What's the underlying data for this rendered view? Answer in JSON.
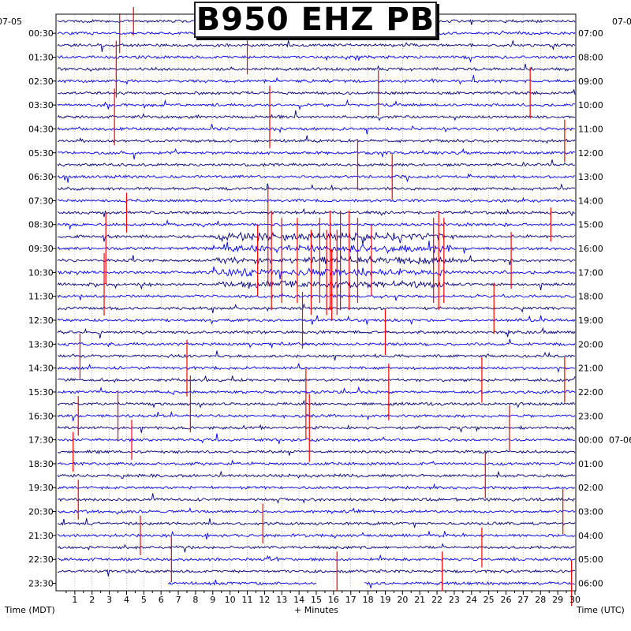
{
  "title": "B950 EHZ PB",
  "left_date": "07-05",
  "right_date": "07-06",
  "left_axis_label": "Time (MDT)",
  "right_axis_label": "Time (UTC)",
  "x_axis_label": "+ Minutes",
  "colors": {
    "trace_dark": "#000080",
    "trace_blue": "#0000ff",
    "event_red": "#ff0000",
    "grid": "#808080",
    "background": "#ffffff"
  },
  "chart_data": {
    "type": "helicorder",
    "title": "B950 EHZ PB",
    "xlabel": "+ Minutes",
    "xlim": [
      0,
      30
    ],
    "x_ticks": [
      1,
      2,
      3,
      4,
      5,
      6,
      7,
      8,
      9,
      10,
      11,
      12,
      13,
      14,
      15,
      16,
      17,
      18,
      19,
      20,
      21,
      22,
      23,
      24,
      25,
      26,
      27,
      28,
      29,
      30
    ],
    "rows_per_half_hour": 1,
    "left_time_labels": [
      "00:30",
      "01:30",
      "02:30",
      "03:30",
      "04:30",
      "05:30",
      "06:30",
      "07:30",
      "08:30",
      "09:30",
      "10:30",
      "11:30",
      "12:30",
      "13:30",
      "14:30",
      "15:30",
      "16:30",
      "17:30",
      "18:30",
      "19:30",
      "20:30",
      "21:30",
      "22:30",
      "23:30"
    ],
    "right_time_labels": [
      "07:00",
      "08:00",
      "09:00",
      "10:00",
      "11:00",
      "12:00",
      "13:00",
      "14:00",
      "15:00",
      "16:00",
      "17:00",
      "18:00",
      "19:00",
      "20:00",
      "21:00",
      "22:00",
      "23:00",
      "00:00",
      "01:00",
      "02:00",
      "03:00",
      "04:00",
      "05:00",
      "06:00"
    ],
    "right_date_marker": {
      "label": "07-06",
      "at": "00:00"
    },
    "row_count": 48,
    "trace_colors_cycle": [
      "#000080",
      "#0000ff"
    ],
    "events": [
      {
        "row": 0,
        "minute": 4.4,
        "amp": 1.0
      },
      {
        "row": 1,
        "minute": 3.6,
        "amp": 1.4
      },
      {
        "row": 3,
        "minute": 11.0,
        "amp": 1.2
      },
      {
        "row": 4,
        "minute": 3.4,
        "amp": 2.0
      },
      {
        "row": 6,
        "minute": 18.6,
        "amp": 1.6
      },
      {
        "row": 6,
        "minute": 27.4,
        "amp": 1.8
      },
      {
        "row": 8,
        "minute": 3.3,
        "amp": 2.0
      },
      {
        "row": 8,
        "minute": 12.3,
        "amp": 2.2
      },
      {
        "row": 10,
        "minute": 29.4,
        "amp": 1.5
      },
      {
        "row": 12,
        "minute": 17.4,
        "amp": 1.8
      },
      {
        "row": 13,
        "minute": 19.4,
        "amp": 1.6
      },
      {
        "row": 16,
        "minute": 4.0,
        "amp": 1.4
      },
      {
        "row": 17,
        "minute": 28.6,
        "amp": 1.2
      },
      {
        "row": 18,
        "minute": 12.2,
        "amp": 3.5
      },
      {
        "row": 19,
        "minute": 2.8,
        "amp": 2.5
      },
      {
        "row": 20,
        "minute": 11.6,
        "amp": 2.5
      },
      {
        "row": 20,
        "minute": 12.4,
        "amp": 3.5
      },
      {
        "row": 20,
        "minute": 13.0,
        "amp": 3.0
      },
      {
        "row": 20,
        "minute": 13.9,
        "amp": 3.0
      },
      {
        "row": 20,
        "minute": 15.2,
        "amp": 3.0
      },
      {
        "row": 20,
        "minute": 15.8,
        "amp": 3.5
      },
      {
        "row": 20,
        "minute": 16.4,
        "amp": 3.5
      },
      {
        "row": 20,
        "minute": 16.9,
        "amp": 3.5
      },
      {
        "row": 20,
        "minute": 17.4,
        "amp": 3.0
      },
      {
        "row": 20,
        "minute": 18.2,
        "amp": 2.5
      },
      {
        "row": 20,
        "minute": 21.8,
        "amp": 3.0
      },
      {
        "row": 20,
        "minute": 22.1,
        "amp": 3.5
      },
      {
        "row": 20,
        "minute": 22.4,
        "amp": 3.0
      },
      {
        "row": 20,
        "minute": 26.3,
        "amp": 2.0
      },
      {
        "row": 21,
        "minute": 14.7,
        "amp": 3.0
      },
      {
        "row": 21,
        "minute": 15.6,
        "amp": 3.0
      },
      {
        "row": 21,
        "minute": 16.2,
        "amp": 3.0
      },
      {
        "row": 22,
        "minute": 2.7,
        "amp": 2.2
      },
      {
        "row": 22,
        "minute": 15.9,
        "amp": 2.5
      },
      {
        "row": 24,
        "minute": 25.3,
        "amp": 1.8
      },
      {
        "row": 25,
        "minute": 14.2,
        "amp": 2.0
      },
      {
        "row": 26,
        "minute": 19.0,
        "amp": 1.6
      },
      {
        "row": 28,
        "minute": 1.3,
        "amp": 1.6
      },
      {
        "row": 29,
        "minute": 7.5,
        "amp": 2.0
      },
      {
        "row": 30,
        "minute": 24.6,
        "amp": 1.6
      },
      {
        "row": 30,
        "minute": 29.4,
        "amp": 1.6
      },
      {
        "row": 31,
        "minute": 19.2,
        "amp": 2.0
      },
      {
        "row": 32,
        "minute": 14.4,
        "amp": 2.5
      },
      {
        "row": 32,
        "minute": 7.7,
        "amp": 2.0
      },
      {
        "row": 33,
        "minute": 1.2,
        "amp": 1.4
      },
      {
        "row": 33,
        "minute": 3.5,
        "amp": 1.8
      },
      {
        "row": 34,
        "minute": 14.6,
        "amp": 2.4
      },
      {
        "row": 34,
        "minute": 26.2,
        "amp": 1.6
      },
      {
        "row": 35,
        "minute": 4.3,
        "amp": 1.4
      },
      {
        "row": 36,
        "minute": 0.9,
        "amp": 1.4
      },
      {
        "row": 38,
        "minute": 24.8,
        "amp": 1.6
      },
      {
        "row": 40,
        "minute": 1.2,
        "amp": 1.4
      },
      {
        "row": 41,
        "minute": 29.3,
        "amp": 1.6
      },
      {
        "row": 42,
        "minute": 11.9,
        "amp": 1.4
      },
      {
        "row": 43,
        "minute": 4.8,
        "amp": 1.4
      },
      {
        "row": 44,
        "minute": 24.6,
        "amp": 1.4
      },
      {
        "row": 45,
        "minute": 6.6,
        "amp": 1.6
      },
      {
        "row": 46,
        "minute": 16.2,
        "amp": 1.4
      },
      {
        "row": 46,
        "minute": 22.3,
        "amp": 1.4
      },
      {
        "row": 47,
        "minute": 29.8,
        "amp": 1.6
      }
    ],
    "data_gaps": [
      {
        "row": 47,
        "from_minute": 0.0,
        "to_minute": 6.4
      },
      {
        "row": 47,
        "from_minute": 15.0,
        "to_minute": 17.8
      }
    ]
  }
}
